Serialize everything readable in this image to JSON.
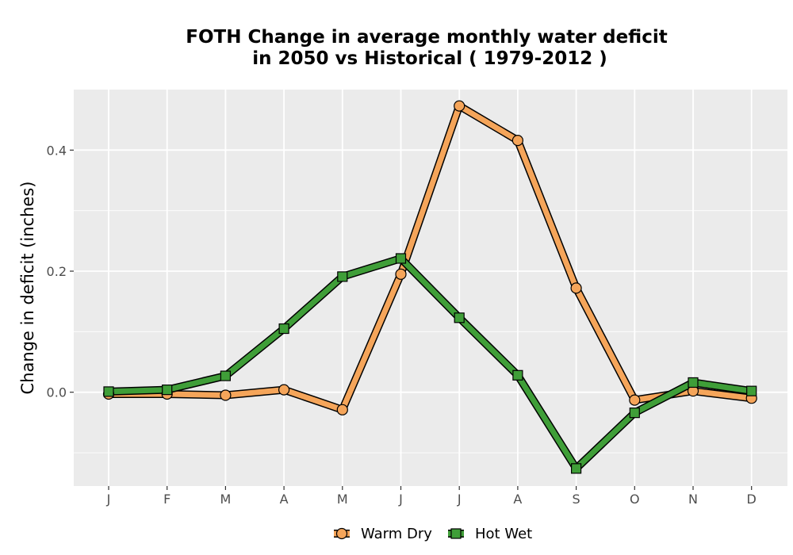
{
  "chart_data": {
    "type": "line",
    "title_lines": [
      "FOTH  Change in average monthly water deficit",
      "in 2050 vs Historical ( 1979-2012 )"
    ],
    "xlabel": "",
    "ylabel": "Change in deficit (inches)",
    "categories": [
      "J",
      "F",
      "M",
      "A",
      "M",
      "J",
      "J",
      "A",
      "S",
      "O",
      "N",
      "D"
    ],
    "y_ticks": [
      "0.0",
      "0.2",
      "0.4"
    ],
    "y_tick_values": [
      0.0,
      0.2,
      0.4
    ],
    "ylim": [
      -0.155,
      0.5
    ],
    "grid": true,
    "legend_position": "bottom",
    "series": [
      {
        "name": "Warm Dry",
        "marker": "circle",
        "color": "#f5a55a",
        "values": [
          -0.003,
          -0.003,
          -0.005,
          0.004,
          -0.029,
          0.195,
          0.473,
          0.416,
          0.172,
          -0.013,
          0.002,
          -0.01
        ]
      },
      {
        "name": "Hot Wet",
        "marker": "square",
        "color": "#3f9e38",
        "values": [
          0.001,
          0.004,
          0.027,
          0.105,
          0.191,
          0.221,
          0.123,
          0.028,
          -0.126,
          -0.034,
          0.016,
          0.002
        ]
      }
    ],
    "panel_background": "#ebebeb",
    "grid_color": "#ffffff"
  }
}
